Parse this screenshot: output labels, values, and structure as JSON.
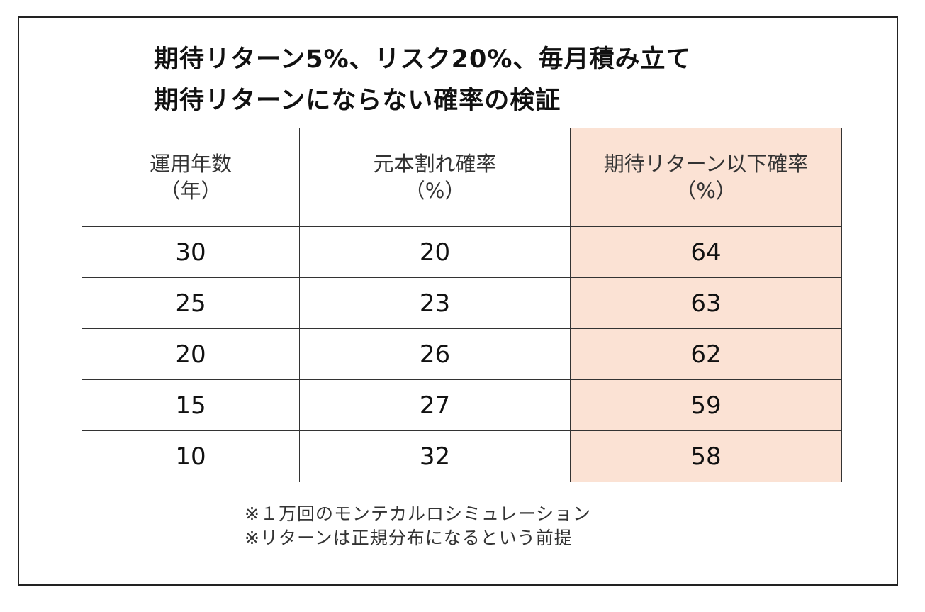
{
  "title": {
    "line1": "期待リターン5%、リスク20%、毎月積み立て",
    "line2": "期待リターンにならない確率の検証"
  },
  "chart_data": {
    "type": "table",
    "columns": [
      {
        "label": "運用年数",
        "unit": "（年）"
      },
      {
        "label": "元本割れ確率",
        "unit": "（%）"
      },
      {
        "label": "期待リターン以下確率",
        "unit": "（%）"
      }
    ],
    "rows": [
      [
        "30",
        "20",
        "64"
      ],
      [
        "25",
        "23",
        "63"
      ],
      [
        "20",
        "26",
        "62"
      ],
      [
        "15",
        "27",
        "59"
      ],
      [
        "10",
        "32",
        "58"
      ]
    ],
    "highlight_column": 2,
    "highlight_color": "#fbe2d4"
  },
  "notes": [
    "※１万回のモンテカルロシミュレーション",
    "※リターンは正規分布になるという前提"
  ]
}
